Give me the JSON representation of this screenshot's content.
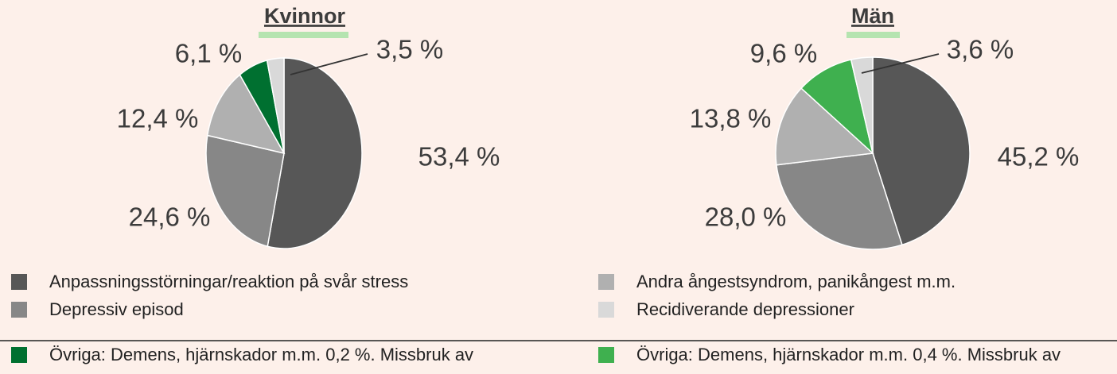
{
  "chart_data": [
    {
      "type": "pie",
      "title": "Kvinnor",
      "categories": [
        "Anpassningsstörningar/reaktion på svår stress",
        "Depressiv episod",
        "Andra ångestsyndrom, panikångest m.m.",
        "Övriga: Demens, hjärnskador m.m. 0,2 %. Missbruk av",
        "Recidiverande depressioner"
      ],
      "values": [
        53.4,
        24.6,
        12.4,
        6.1,
        3.5
      ],
      "value_labels": [
        "53,4 %",
        "24,6 %",
        "12,4 %",
        "6,1 %",
        "3,5 %"
      ],
      "colors": [
        "#575757",
        "#878787",
        "#b0b0b0",
        "#007030",
        "#d9d9d9"
      ]
    },
    {
      "type": "pie",
      "title": "Män",
      "categories": [
        "Anpassningsstörningar/reaktion på svår stress",
        "Depressiv episod",
        "Andra ångestsyndrom, panikångest m.m.",
        "Övriga: Demens, hjärnskador m.m. 0,4 %. Missbruk av",
        "Recidiverande depressioner"
      ],
      "values": [
        45.2,
        28.0,
        13.8,
        9.6,
        3.6
      ],
      "value_labels": [
        "45,2 %",
        "28,0 %",
        "13,8 %",
        "9,6 %",
        "3,6 %"
      ],
      "colors": [
        "#575757",
        "#878787",
        "#b0b0b0",
        "#3fb04f",
        "#d9d9d9"
      ]
    }
  ]
}
